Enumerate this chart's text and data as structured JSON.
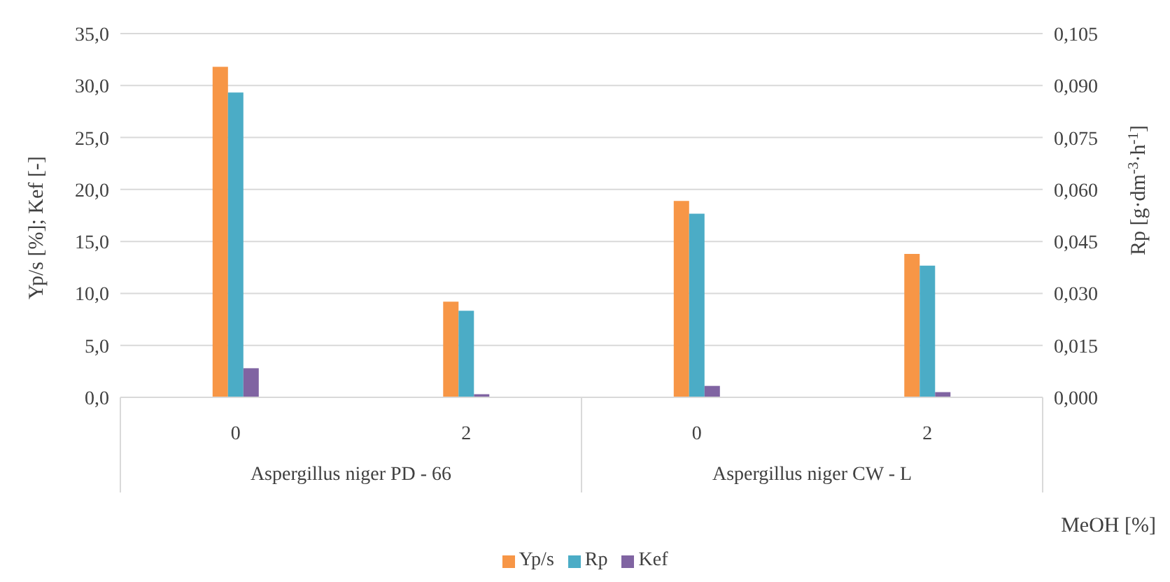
{
  "chart_data": {
    "type": "bar",
    "xlabel": "MeOH [%]",
    "ylabel": "Yp/s [%]; Kef [-]",
    "y2label": "Rp [g·dm$^{-3}$·h$^{-1}$]",
    "categories": [
      "0",
      "2",
      "0",
      "2"
    ],
    "annotations": [
      "Aspergillus niger PD - 66",
      "Aspergillus niger CW - L"
    ],
    "series": [
      {
        "name": "Yp/s",
        "color": "#f79646",
        "values": [
          31.8,
          9.2,
          18.9,
          13.8
        ]
      },
      {
        "name": "Rp",
        "color": "#4bacc6",
        "axis": "y2",
        "values": [
          0.088,
          0.025,
          0.053,
          0.038
        ]
      },
      {
        "name": "Kef",
        "color": "#8064a2",
        "values": [
          2.8,
          0.3,
          1.1,
          0.5
        ]
      }
    ],
    "ylim": [
      0,
      35
    ],
    "yticks": [
      {
        "value": 0,
        "label": "0,0"
      },
      {
        "value": 5,
        "label": "5,0"
      },
      {
        "value": 10,
        "label": "10,0"
      },
      {
        "value": 15,
        "label": "15,0"
      },
      {
        "value": 20,
        "label": "20,0"
      },
      {
        "value": 25,
        "label": "25,0"
      },
      {
        "value": 30,
        "label": "30,0"
      },
      {
        "value": 35,
        "label": "35,0"
      }
    ],
    "y2lim": [
      0,
      0.105
    ],
    "y2ticks": [
      {
        "value": 0,
        "label": "0,000"
      },
      {
        "value": 0.015,
        "label": "0,015"
      },
      {
        "value": 0.03,
        "label": "0,030"
      },
      {
        "value": 0.045,
        "label": "0,045"
      },
      {
        "value": 0.06,
        "label": "0,060"
      },
      {
        "value": 0.075,
        "label": "0,075"
      },
      {
        "value": 0.09,
        "label": "0,090"
      },
      {
        "value": 0.105,
        "label": "0,105"
      }
    ],
    "grid": "y",
    "legend": "bottom"
  }
}
